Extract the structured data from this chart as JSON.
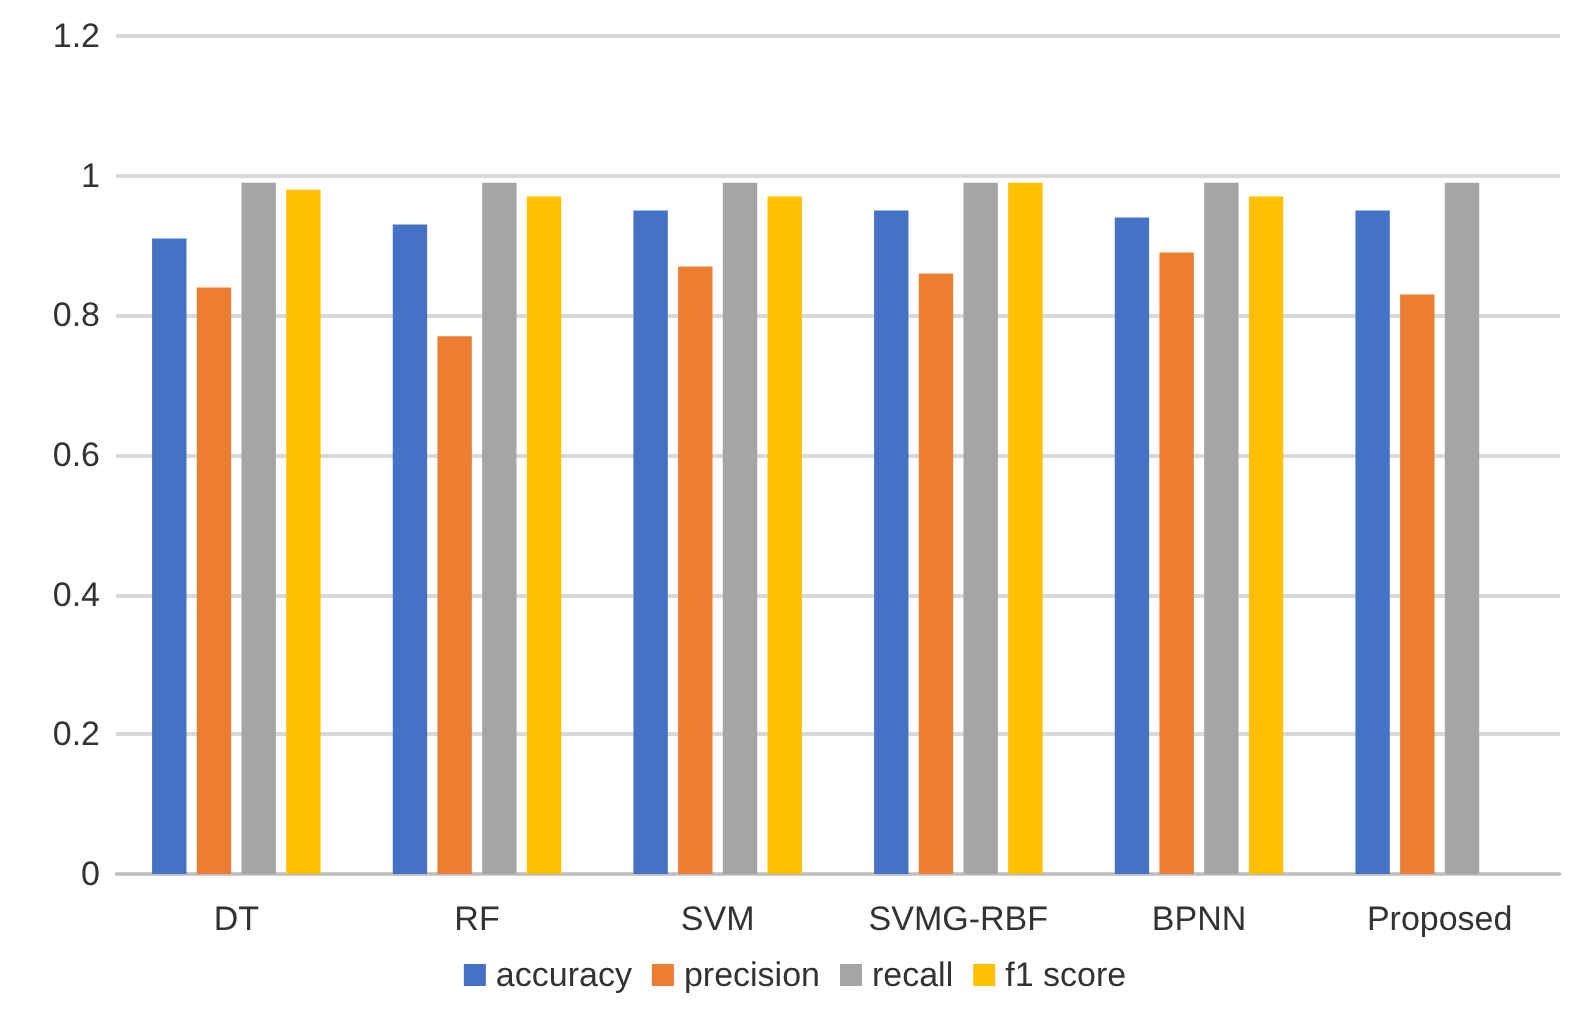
{
  "chart_data": {
    "type": "bar",
    "categories": [
      "DT",
      "RF",
      "SVM",
      "SVMG-RBF",
      "BPNN",
      "Proposed"
    ],
    "series": [
      {
        "name": "accuracy",
        "color": "#4472c4",
        "values": [
          0.91,
          0.93,
          0.95,
          0.95,
          0.94,
          0.95
        ]
      },
      {
        "name": "precision",
        "color": "#ed7d31",
        "values": [
          0.84,
          0.77,
          0.87,
          0.86,
          0.89,
          0.83
        ]
      },
      {
        "name": "recall",
        "color": "#a5a5a5",
        "values": [
          0.99,
          0.99,
          0.99,
          0.99,
          0.99,
          0.99
        ]
      },
      {
        "name": "f1 score",
        "color": "#ffc000",
        "values": [
          0.98,
          0.97,
          0.97,
          0.99,
          0.97,
          null
        ]
      }
    ],
    "ylim": [
      0,
      1.2
    ],
    "yticks": [
      0,
      0.2,
      0.4,
      0.6,
      0.8,
      1,
      1.2
    ],
    "grid": "y",
    "legend": "bottom"
  }
}
